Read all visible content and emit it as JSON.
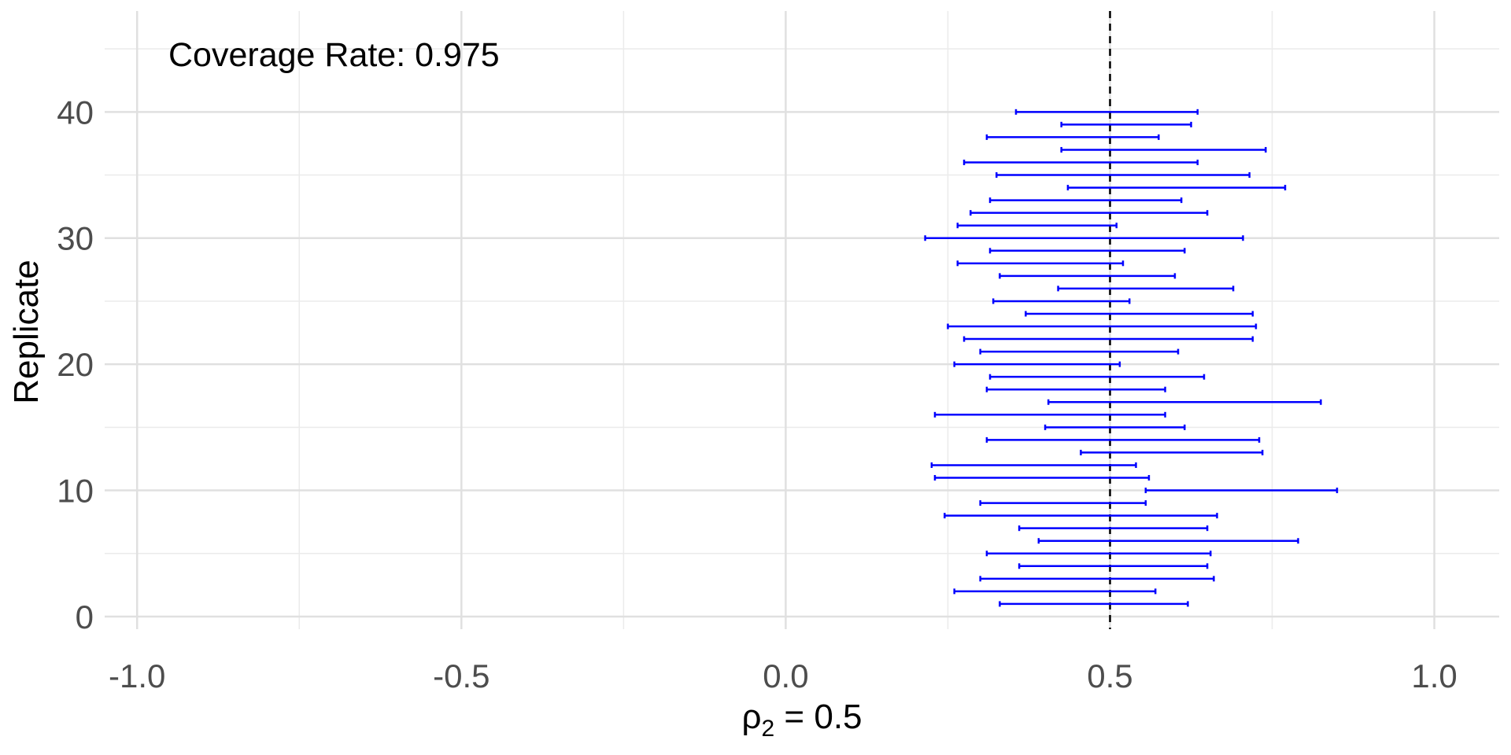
{
  "chart_data": {
    "type": "errorbar",
    "orientation": "horizontal",
    "xlabel": {
      "base": "ρ",
      "sub": "2",
      "rest": " = 0.5"
    },
    "ylabel": "Replicate",
    "xlim": [
      -1.05,
      1.1
    ],
    "ylim": [
      -1,
      48
    ],
    "x_ticks": [
      -1.0,
      -0.5,
      0.0,
      0.5,
      1.0
    ],
    "x_tick_labels": [
      "-1.0",
      "-0.5",
      "0.0",
      "0.5",
      "1.0"
    ],
    "y_ticks": [
      0,
      10,
      20,
      30,
      40
    ],
    "y_tick_labels": [
      "0",
      "10",
      "20",
      "30",
      "40"
    ],
    "reference_line": {
      "x": 0.5,
      "style": "dashed",
      "color": "#000000"
    },
    "annotation": "Coverage Rate: 0.975",
    "grid": true,
    "series_color": "#0000ff",
    "intervals": [
      {
        "replicate": 1,
        "lower": 0.33,
        "upper": 0.62
      },
      {
        "replicate": 2,
        "lower": 0.26,
        "upper": 0.57
      },
      {
        "replicate": 3,
        "lower": 0.3,
        "upper": 0.66
      },
      {
        "replicate": 4,
        "lower": 0.36,
        "upper": 0.65
      },
      {
        "replicate": 5,
        "lower": 0.31,
        "upper": 0.655
      },
      {
        "replicate": 6,
        "lower": 0.39,
        "upper": 0.79
      },
      {
        "replicate": 7,
        "lower": 0.36,
        "upper": 0.65
      },
      {
        "replicate": 8,
        "lower": 0.245,
        "upper": 0.665
      },
      {
        "replicate": 9,
        "lower": 0.3,
        "upper": 0.555
      },
      {
        "replicate": 10,
        "lower": 0.555,
        "upper": 0.85
      },
      {
        "replicate": 11,
        "lower": 0.23,
        "upper": 0.56
      },
      {
        "replicate": 12,
        "lower": 0.225,
        "upper": 0.54
      },
      {
        "replicate": 13,
        "lower": 0.455,
        "upper": 0.735
      },
      {
        "replicate": 14,
        "lower": 0.31,
        "upper": 0.73
      },
      {
        "replicate": 15,
        "lower": 0.4,
        "upper": 0.615
      },
      {
        "replicate": 16,
        "lower": 0.23,
        "upper": 0.585
      },
      {
        "replicate": 17,
        "lower": 0.405,
        "upper": 0.825
      },
      {
        "replicate": 18,
        "lower": 0.31,
        "upper": 0.585
      },
      {
        "replicate": 19,
        "lower": 0.315,
        "upper": 0.645
      },
      {
        "replicate": 20,
        "lower": 0.26,
        "upper": 0.515
      },
      {
        "replicate": 21,
        "lower": 0.3,
        "upper": 0.605
      },
      {
        "replicate": 22,
        "lower": 0.275,
        "upper": 0.72
      },
      {
        "replicate": 23,
        "lower": 0.25,
        "upper": 0.725
      },
      {
        "replicate": 24,
        "lower": 0.37,
        "upper": 0.72
      },
      {
        "replicate": 25,
        "lower": 0.32,
        "upper": 0.53
      },
      {
        "replicate": 26,
        "lower": 0.42,
        "upper": 0.69
      },
      {
        "replicate": 27,
        "lower": 0.33,
        "upper": 0.6
      },
      {
        "replicate": 28,
        "lower": 0.265,
        "upper": 0.52
      },
      {
        "replicate": 29,
        "lower": 0.315,
        "upper": 0.615
      },
      {
        "replicate": 30,
        "lower": 0.215,
        "upper": 0.705
      },
      {
        "replicate": 31,
        "lower": 0.265,
        "upper": 0.51
      },
      {
        "replicate": 32,
        "lower": 0.285,
        "upper": 0.65
      },
      {
        "replicate": 33,
        "lower": 0.315,
        "upper": 0.61
      },
      {
        "replicate": 34,
        "lower": 0.435,
        "upper": 0.77
      },
      {
        "replicate": 35,
        "lower": 0.325,
        "upper": 0.715
      },
      {
        "replicate": 36,
        "lower": 0.275,
        "upper": 0.635
      },
      {
        "replicate": 37,
        "lower": 0.425,
        "upper": 0.74
      },
      {
        "replicate": 38,
        "lower": 0.31,
        "upper": 0.575
      },
      {
        "replicate": 39,
        "lower": 0.425,
        "upper": 0.625
      },
      {
        "replicate": 40,
        "lower": 0.355,
        "upper": 0.635
      }
    ]
  }
}
